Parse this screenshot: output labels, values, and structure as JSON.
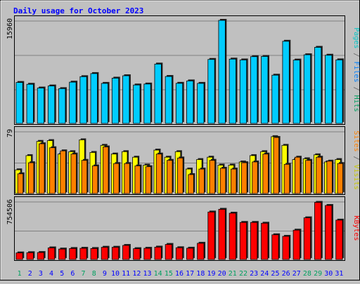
{
  "chart_data": {
    "type": "bar",
    "title": "Daily usage for October 2023",
    "categories": [
      "1",
      "2",
      "3",
      "4",
      "5",
      "6",
      "7",
      "8",
      "9",
      "10",
      "11",
      "12",
      "13",
      "14",
      "15",
      "16",
      "17",
      "18",
      "19",
      "20",
      "21",
      "22",
      "23",
      "24",
      "25",
      "26",
      "27",
      "28",
      "29",
      "30",
      "31"
    ],
    "weekend_days": [
      "1",
      "7",
      "8",
      "14",
      "15",
      "21",
      "22",
      "28",
      "29"
    ],
    "panels": [
      {
        "id": "hits-files",
        "ymax_label": "15960",
        "ymax": 15960,
        "series": [
          {
            "name": "Hits",
            "color": "#00ccff",
            "values": [
              6340,
              6060,
              5480,
              5800,
              5390,
              6390,
              7240,
              7720,
              6200,
              7010,
              7380,
              5950,
              6100,
              9190,
              7270,
              6210,
              6580,
              6200,
              9910,
              15960,
              9960,
              9830,
              10340,
              10370,
              7470,
              12720,
              9810,
              10630,
              11780,
              10560,
              9840
            ]
          },
          {
            "name": "Files",
            "color": "#0080ff",
            "values": []
          },
          {
            "name": "Pages",
            "color": "#00c8c8",
            "values": []
          }
        ],
        "axis_label_parts": [
          {
            "text": "Pages",
            "color": "#00c8c8"
          },
          {
            "text": " / ",
            "color": "#606060"
          },
          {
            "text": "Files",
            "color": "#0080ff"
          },
          {
            "text": " / ",
            "color": "#606060"
          },
          {
            "text": "Hits",
            "color": "#00a060"
          }
        ]
      },
      {
        "id": "visits-sites",
        "ymax_label": "79",
        "ymax": 79,
        "series": [
          {
            "name": "Visits",
            "color": "#ffff00",
            "values": [
              30,
              48,
              66,
              67,
              50,
              53,
              68,
              52,
              61,
              50,
              53,
              46,
              36,
              55,
              46,
              53,
              31,
              43,
              46,
              36,
              36,
              40,
              48,
              53,
              72,
              61,
              43,
              44,
              49,
              40,
              43
            ]
          },
          {
            "name": "Sites",
            "color": "#ff8000",
            "values": [
              25,
              39,
              63,
              58,
              54,
              50,
              42,
              35,
              59,
              38,
              38,
              35,
              34,
              50,
              42,
              45,
              24,
              31,
              42,
              32,
              31,
              39,
              40,
              50,
              71,
              37,
              46,
              42,
              46,
              41,
              38
            ]
          }
        ],
        "axis_label_parts": [
          {
            "text": "Sites",
            "color": "#ff8000"
          },
          {
            "text": " / ",
            "color": "#606060"
          },
          {
            "text": "Visits",
            "color": "#c8c800"
          }
        ]
      },
      {
        "id": "kbytes",
        "ymax_label": "754506",
        "ymax": 754506,
        "series": [
          {
            "name": "KBytes",
            "color": "#ff0000",
            "values": [
              85000,
              88000,
              90000,
              150000,
              135000,
              142000,
              145000,
              142000,
              158000,
              158000,
              182000,
              140000,
              145000,
              160000,
              195000,
              152000,
              146000,
              210000,
              615000,
              650000,
              600000,
              480000,
              480000,
              470000,
              320000,
              300000,
              380000,
              540000,
              740000,
              700000,
              510000
            ]
          }
        ],
        "axis_label_parts": [
          {
            "text": "KBytes",
            "color": "#ff0000"
          }
        ]
      }
    ]
  },
  "colors": {
    "background": "#c0c0c0",
    "title": "#0000ff",
    "day_label": "#0000ff",
    "weekend_label": "#00a060",
    "grid": "#808080",
    "bar_outline": "#000000"
  }
}
